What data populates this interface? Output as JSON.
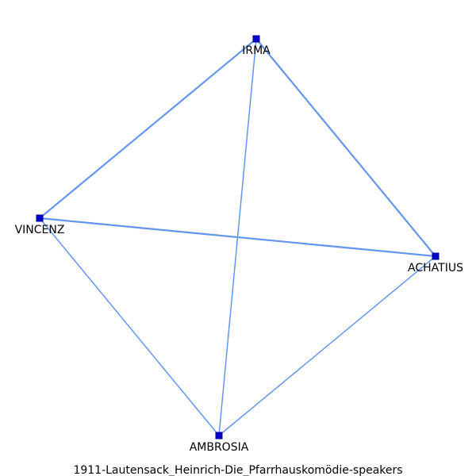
{
  "caption": "1911-Lautensack_Heinrich-Die_Pfarrhauskomödie-speakers",
  "colors": {
    "edge": "#6495ED",
    "node": "#0000CD",
    "node_border": "#00008B"
  },
  "nodes": [
    {
      "id": "IRMA",
      "label": "IRMA"
    },
    {
      "id": "VINCENZ",
      "label": "VINCENZ"
    },
    {
      "id": "ACHATIUS",
      "label": "ACHATIUS"
    },
    {
      "id": "AMBROSIA",
      "label": "AMBROSIA"
    }
  ],
  "edges": [
    {
      "source": "IRMA",
      "target": "VINCENZ",
      "weight": 2
    },
    {
      "source": "IRMA",
      "target": "ACHATIUS",
      "weight": 2
    },
    {
      "source": "VINCENZ",
      "target": "ACHATIUS",
      "weight": 2
    },
    {
      "source": "IRMA",
      "target": "AMBROSIA",
      "weight": 1
    },
    {
      "source": "VINCENZ",
      "target": "AMBROSIA",
      "weight": 1
    },
    {
      "source": "ACHATIUS",
      "target": "AMBROSIA",
      "weight": 1
    }
  ]
}
